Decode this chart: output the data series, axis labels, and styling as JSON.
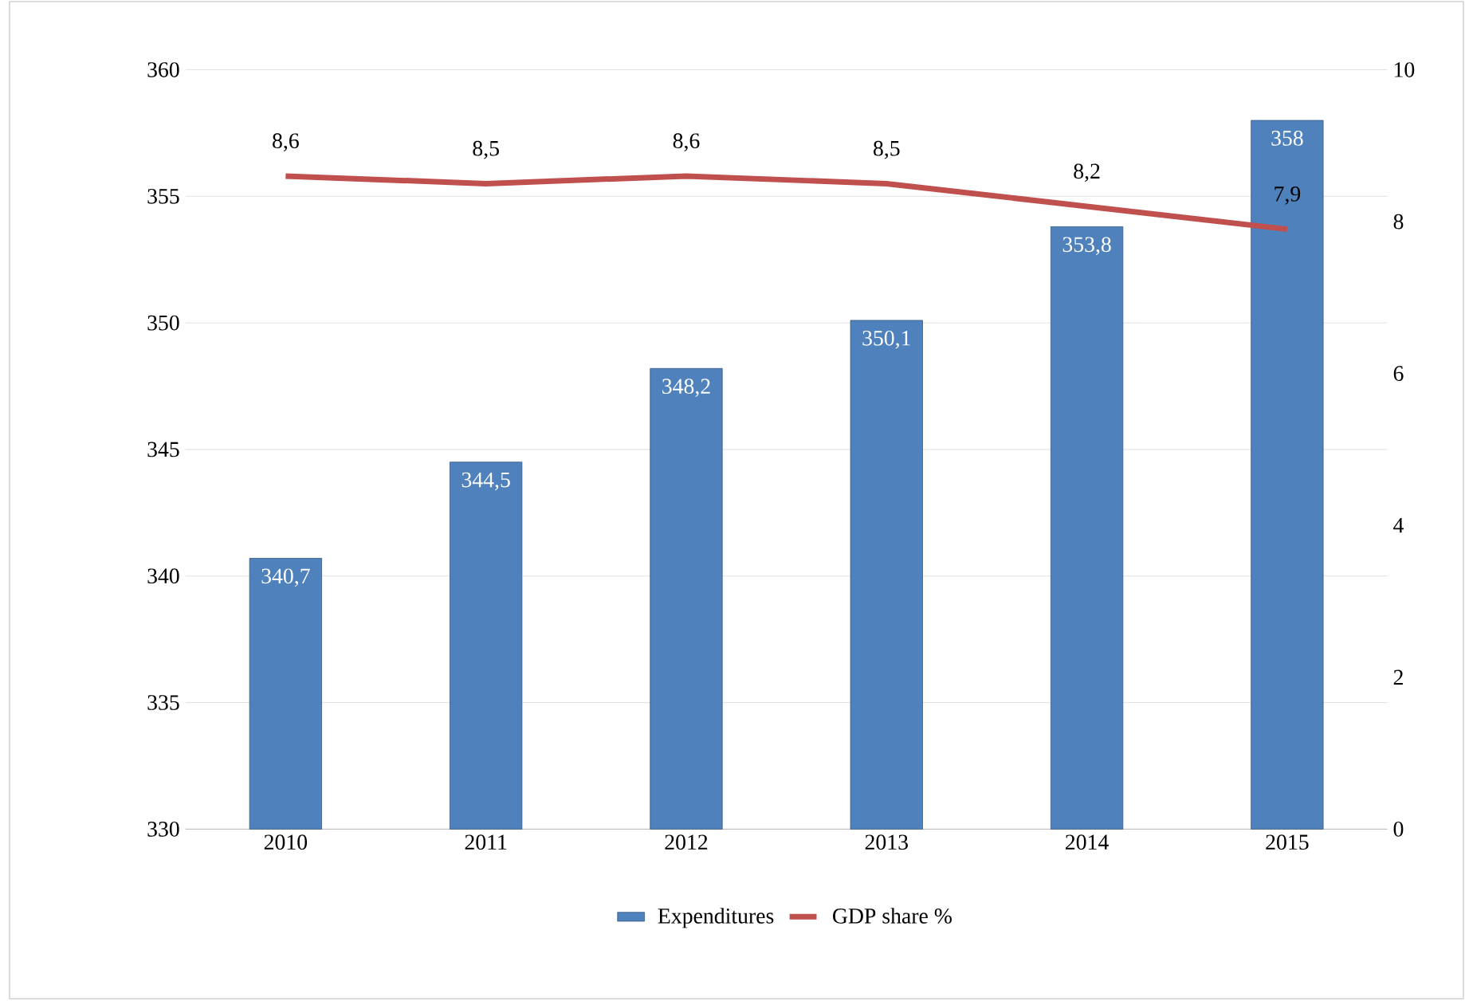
{
  "chart_data": {
    "type": "bar",
    "categories": [
      "2010",
      "2011",
      "2012",
      "2013",
      "2014",
      "2015"
    ],
    "series": [
      {
        "name": "Expenditures",
        "color": "#4f81bd",
        "values": [
          340.7,
          344.5,
          348.2,
          350.1,
          353.8,
          358
        ],
        "value_labels": [
          "340,7",
          "344,5",
          "348,2",
          "350,1",
          "353,8",
          "358"
        ]
      },
      {
        "name": "GDP share %",
        "type": "line",
        "axis": "y2",
        "color": "#c0504d",
        "values": [
          8.6,
          8.5,
          8.6,
          8.5,
          8.2,
          7.9
        ],
        "value_labels": [
          "8,6",
          "8,5",
          "8,6",
          "8,5",
          "8,2",
          "7,9"
        ]
      }
    ],
    "ylim": [
      330,
      360
    ],
    "yticks": [
      330,
      335,
      340,
      345,
      350,
      355,
      360
    ],
    "y2lim": [
      0,
      10
    ],
    "y2ticks": [
      0,
      2,
      4,
      6,
      8,
      10
    ],
    "grid": "y",
    "legend": "bottom",
    "marker": "none",
    "line_style": "solid"
  }
}
